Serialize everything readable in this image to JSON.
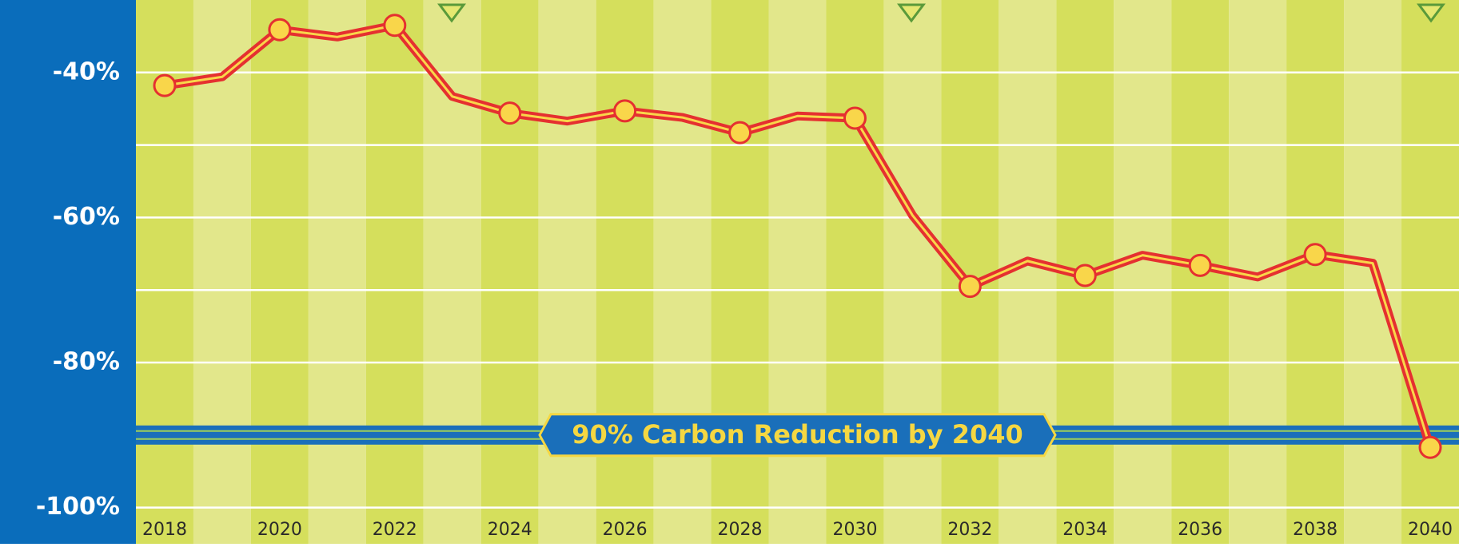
{
  "chart_data": {
    "type": "line",
    "x": [
      2018,
      2019,
      2020,
      2021,
      2022,
      2023,
      2024,
      2025,
      2026,
      2027,
      2028,
      2029,
      2030,
      2031,
      2032,
      2033,
      2034,
      2035,
      2036,
      2037,
      2038,
      2039,
      2040
    ],
    "series": [
      {
        "color": "#e53030",
        "values": [
          -41.8,
          -40.6,
          -34.1,
          -35.1,
          -33.5,
          -43.3,
          -45.6,
          -46.7,
          -45.3,
          -46.2,
          -48.3,
          -46.0,
          -46.3,
          -59.7,
          -69.5,
          -66.0,
          -68.0,
          -65.2,
          -66.6,
          -68.2,
          -65.1,
          -66.3,
          -91.7
        ]
      }
    ],
    "xlim": [
      2017.5,
      2040.5
    ],
    "xticks": [
      2018,
      2020,
      2022,
      2024,
      2026,
      2028,
      2030,
      2032,
      2034,
      2036,
      2038,
      2040
    ],
    "ylim": [
      -105,
      -30
    ],
    "yticks": [
      {
        "value": -40,
        "label": "-40%"
      },
      {
        "value": -60,
        "label": "-60%"
      },
      {
        "value": -80,
        "label": "-80%"
      },
      {
        "value": -100,
        "label": "-100%"
      }
    ],
    "minor_yticks": [
      -50,
      -70
    ],
    "grid": true,
    "target": {
      "value": -90,
      "label": "90% Carbon Reduction by 2040"
    }
  }
}
